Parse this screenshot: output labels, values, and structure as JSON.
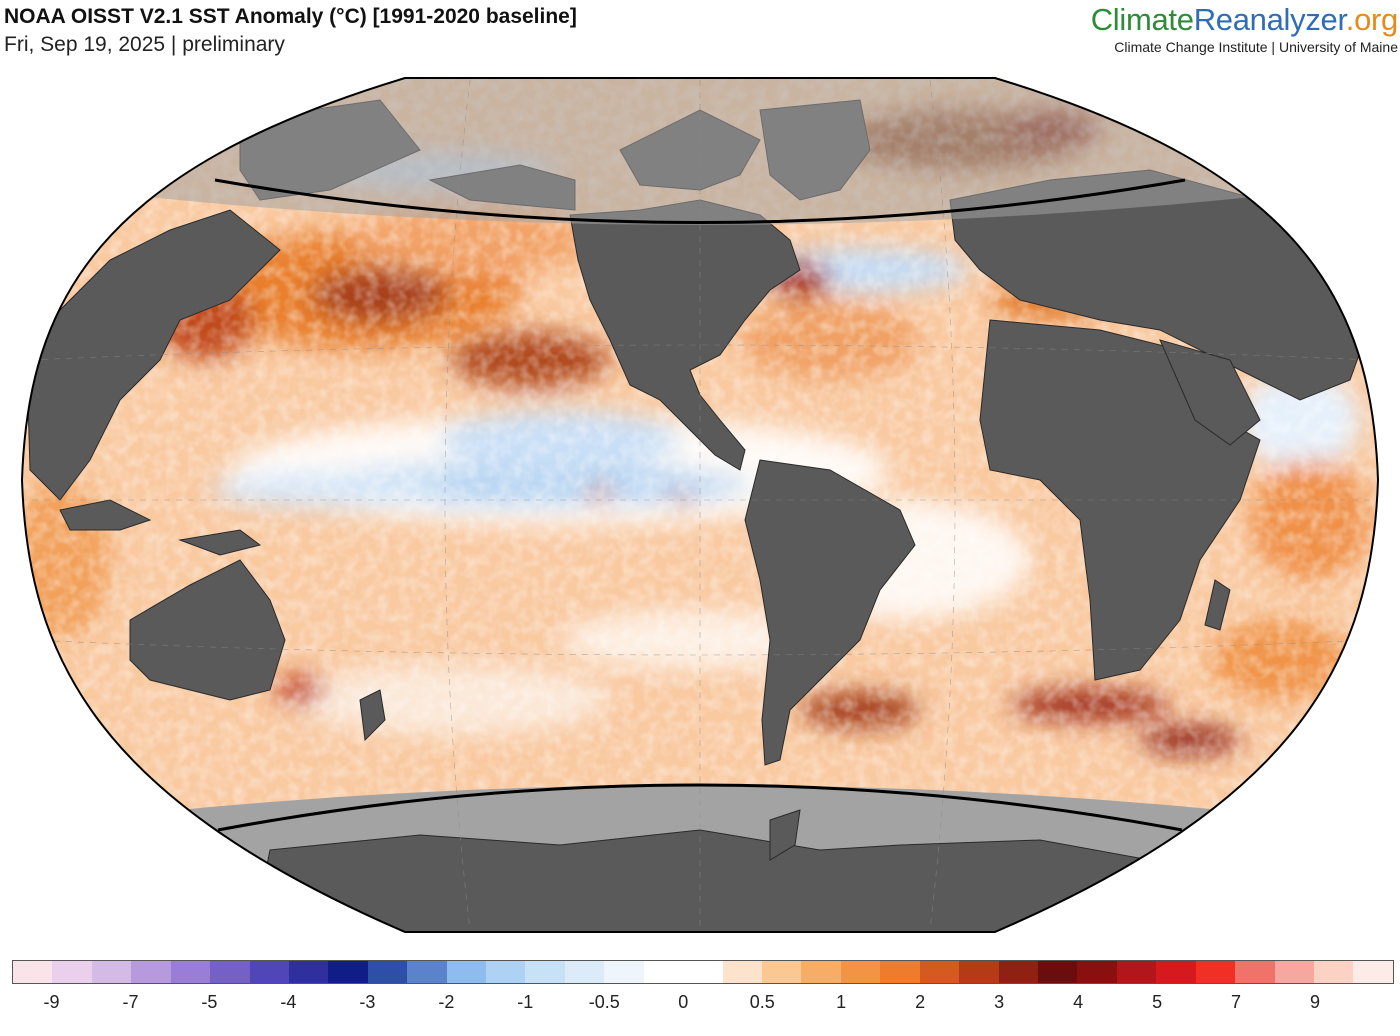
{
  "header": {
    "title": "NOAA OISST V2.1 SST Anomaly (°C) [1991-2020 baseline]",
    "subtitle": "Fri, Sep 19, 2025 | preliminary"
  },
  "brand": {
    "part1": "Climate",
    "part2": "Reanalyzer",
    "part3": ".org",
    "affiliation": "Climate Change Institute | University of Maine",
    "colors": {
      "part1": "#2e8b3a",
      "part2": "#2f6db5",
      "part3": "#e68a1c"
    }
  },
  "map": {
    "projection": "Winkel Tripel (world, Pacific-centered)",
    "land_color": "#5a5a5a",
    "ice_color": "#a3a3a3",
    "ocean_neutral": "#ffffff"
  },
  "colorbar": {
    "colors": [
      "#fbe3ea",
      "#ead0ec",
      "#d4bbe6",
      "#b79ade",
      "#9a7dd8",
      "#7560c6",
      "#5146b8",
      "#2f2f9e",
      "#101d87",
      "#2d4fa8",
      "#5a83cc",
      "#8fbcee",
      "#add2f3",
      "#c7e1f7",
      "#dcebfa",
      "#eef5fc",
      "#ffffff",
      "#ffffff",
      "#fde3cc",
      "#fbc894",
      "#f6ad66",
      "#f39344",
      "#ee7c2c",
      "#d45a1f",
      "#b53b17",
      "#8f2113",
      "#6b0d0c",
      "#8a0f0f",
      "#b3161a",
      "#d6191d",
      "#f03024",
      "#f0736a",
      "#f7a6a0",
      "#fbd2c3",
      "#fdebe8"
    ],
    "tick_labels": [
      "-9",
      "-7",
      "-5",
      "-4",
      "-3",
      "-2",
      "-1",
      "-0.5",
      "0",
      "0.5",
      "1",
      "2",
      "3",
      "4",
      "5",
      "7",
      "9"
    ],
    "tick_positions_index": [
      1,
      3,
      5,
      7,
      9,
      11,
      13,
      15,
      17,
      19,
      21,
      23,
      25,
      27,
      29,
      31,
      33
    ]
  }
}
